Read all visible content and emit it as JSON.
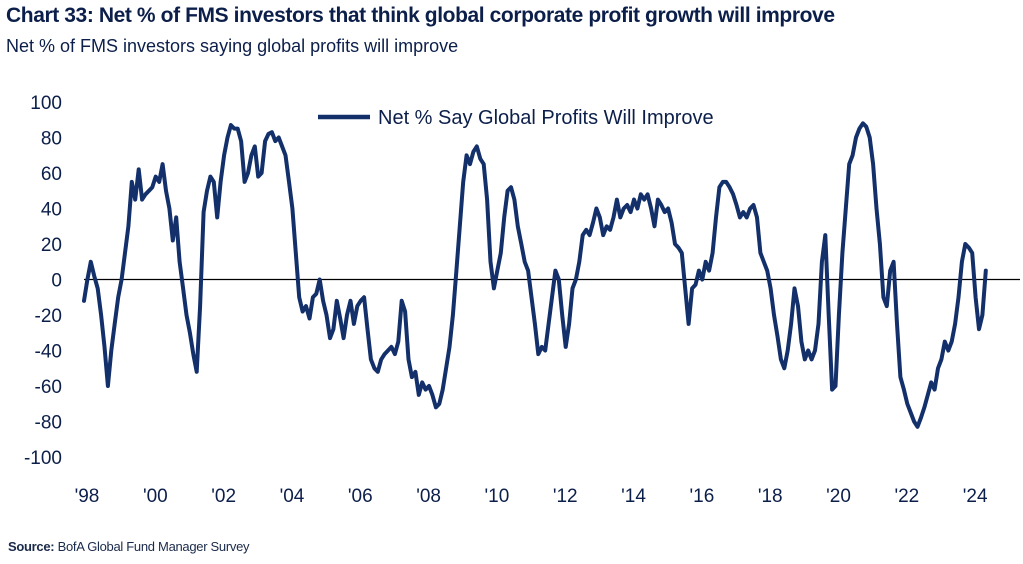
{
  "title": "Chart 33: Net % of FMS investors that think global corporate profit growth will improve",
  "subtitle": "Net % of FMS investors saying global profits will improve",
  "source_label": "Source:",
  "source_text": "BofA Global Fund Manager Survey",
  "colors": {
    "line": "#13306b",
    "text": "#0c1f4a",
    "zero_line": "#000000"
  },
  "chart_data": {
    "type": "line",
    "title": "",
    "xlabel": "",
    "ylabel": "",
    "ylim": [
      -100,
      100
    ],
    "xlim": [
      1998.0,
      2025.4
    ],
    "yticks": [
      100,
      80,
      60,
      40,
      20,
      0,
      -20,
      -40,
      -60,
      -80,
      -100
    ],
    "xticks": [
      {
        "value": 1998,
        "label": "'98"
      },
      {
        "value": 2000,
        "label": "'00"
      },
      {
        "value": 2002,
        "label": "'02"
      },
      {
        "value": 2004,
        "label": "'04"
      },
      {
        "value": 2006,
        "label": "'06"
      },
      {
        "value": 2008,
        "label": "'08"
      },
      {
        "value": 2010,
        "label": "'10"
      },
      {
        "value": 2012,
        "label": "'12"
      },
      {
        "value": 2014,
        "label": "'14"
      },
      {
        "value": 2016,
        "label": "'16"
      },
      {
        "value": 2018,
        "label": "'18"
      },
      {
        "value": 2020,
        "label": "'20"
      },
      {
        "value": 2022,
        "label": "'22"
      },
      {
        "value": 2024,
        "label": "'24"
      }
    ],
    "grid": false,
    "legend_position": "top-center",
    "series": [
      {
        "name": "Net % Say Global Profits Will Improve",
        "points": [
          [
            1998.0,
            -12
          ],
          [
            1998.1,
            0
          ],
          [
            1998.2,
            10
          ],
          [
            1998.3,
            2
          ],
          [
            1998.4,
            -5
          ],
          [
            1998.5,
            -20
          ],
          [
            1998.6,
            -38
          ],
          [
            1998.7,
            -60
          ],
          [
            1998.8,
            -40
          ],
          [
            1998.9,
            -25
          ],
          [
            1999.0,
            -10
          ],
          [
            1999.1,
            0
          ],
          [
            1999.2,
            15
          ],
          [
            1999.3,
            30
          ],
          [
            1999.4,
            55
          ],
          [
            1999.5,
            45
          ],
          [
            1999.6,
            62
          ],
          [
            1999.7,
            45
          ],
          [
            1999.8,
            48
          ],
          [
            1999.9,
            50
          ],
          [
            2000.0,
            52
          ],
          [
            2000.1,
            58
          ],
          [
            2000.2,
            55
          ],
          [
            2000.3,
            65
          ],
          [
            2000.4,
            50
          ],
          [
            2000.5,
            40
          ],
          [
            2000.6,
            22
          ],
          [
            2000.7,
            35
          ],
          [
            2000.8,
            10
          ],
          [
            2000.9,
            -5
          ],
          [
            2001.0,
            -20
          ],
          [
            2001.1,
            -30
          ],
          [
            2001.2,
            -42
          ],
          [
            2001.3,
            -52
          ],
          [
            2001.4,
            -15
          ],
          [
            2001.5,
            38
          ],
          [
            2001.6,
            50
          ],
          [
            2001.7,
            58
          ],
          [
            2001.8,
            55
          ],
          [
            2001.9,
            35
          ],
          [
            2002.0,
            55
          ],
          [
            2002.1,
            70
          ],
          [
            2002.2,
            80
          ],
          [
            2002.3,
            87
          ],
          [
            2002.4,
            85
          ],
          [
            2002.5,
            85
          ],
          [
            2002.6,
            78
          ],
          [
            2002.7,
            55
          ],
          [
            2002.8,
            60
          ],
          [
            2002.9,
            70
          ],
          [
            2003.0,
            75
          ],
          [
            2003.1,
            58
          ],
          [
            2003.2,
            60
          ],
          [
            2003.3,
            78
          ],
          [
            2003.4,
            82
          ],
          [
            2003.5,
            83
          ],
          [
            2003.6,
            78
          ],
          [
            2003.7,
            80
          ],
          [
            2003.8,
            75
          ],
          [
            2003.9,
            70
          ],
          [
            2004.0,
            55
          ],
          [
            2004.1,
            40
          ],
          [
            2004.2,
            15
          ],
          [
            2004.3,
            -10
          ],
          [
            2004.4,
            -18
          ],
          [
            2004.5,
            -15
          ],
          [
            2004.6,
            -22
          ],
          [
            2004.7,
            -10
          ],
          [
            2004.8,
            -8
          ],
          [
            2004.9,
            0
          ],
          [
            2005.0,
            -12
          ],
          [
            2005.1,
            -20
          ],
          [
            2005.2,
            -33
          ],
          [
            2005.3,
            -28
          ],
          [
            2005.4,
            -12
          ],
          [
            2005.5,
            -22
          ],
          [
            2005.6,
            -33
          ],
          [
            2005.7,
            -20
          ],
          [
            2005.8,
            -12
          ],
          [
            2005.9,
            -25
          ],
          [
            2006.0,
            -15
          ],
          [
            2006.1,
            -12
          ],
          [
            2006.2,
            -10
          ],
          [
            2006.3,
            -28
          ],
          [
            2006.4,
            -45
          ],
          [
            2006.5,
            -50
          ],
          [
            2006.6,
            -52
          ],
          [
            2006.7,
            -45
          ],
          [
            2006.8,
            -42
          ],
          [
            2006.9,
            -40
          ],
          [
            2007.0,
            -38
          ],
          [
            2007.1,
            -42
          ],
          [
            2007.2,
            -35
          ],
          [
            2007.3,
            -12
          ],
          [
            2007.4,
            -18
          ],
          [
            2007.5,
            -45
          ],
          [
            2007.6,
            -55
          ],
          [
            2007.7,
            -52
          ],
          [
            2007.8,
            -65
          ],
          [
            2007.9,
            -58
          ],
          [
            2008.0,
            -62
          ],
          [
            2008.1,
            -60
          ],
          [
            2008.2,
            -65
          ],
          [
            2008.3,
            -72
          ],
          [
            2008.4,
            -70
          ],
          [
            2008.5,
            -62
          ],
          [
            2008.6,
            -50
          ],
          [
            2008.7,
            -38
          ],
          [
            2008.8,
            -20
          ],
          [
            2008.9,
            5
          ],
          [
            2009.0,
            30
          ],
          [
            2009.1,
            55
          ],
          [
            2009.2,
            70
          ],
          [
            2009.3,
            65
          ],
          [
            2009.4,
            72
          ],
          [
            2009.5,
            75
          ],
          [
            2009.6,
            68
          ],
          [
            2009.7,
            65
          ],
          [
            2009.8,
            45
          ],
          [
            2009.9,
            10
          ],
          [
            2010.0,
            -5
          ],
          [
            2010.1,
            5
          ],
          [
            2010.2,
            15
          ],
          [
            2010.3,
            35
          ],
          [
            2010.4,
            50
          ],
          [
            2010.5,
            52
          ],
          [
            2010.6,
            45
          ],
          [
            2010.7,
            30
          ],
          [
            2010.8,
            20
          ],
          [
            2010.9,
            10
          ],
          [
            2011.0,
            5
          ],
          [
            2011.1,
            -10
          ],
          [
            2011.2,
            -25
          ],
          [
            2011.3,
            -42
          ],
          [
            2011.4,
            -38
          ],
          [
            2011.5,
            -40
          ],
          [
            2011.6,
            -25
          ],
          [
            2011.7,
            -10
          ],
          [
            2011.8,
            5
          ],
          [
            2011.9,
            0
          ],
          [
            2012.0,
            -20
          ],
          [
            2012.1,
            -38
          ],
          [
            2012.2,
            -25
          ],
          [
            2012.3,
            -5
          ],
          [
            2012.4,
            0
          ],
          [
            2012.5,
            10
          ],
          [
            2012.6,
            25
          ],
          [
            2012.7,
            28
          ],
          [
            2012.8,
            25
          ],
          [
            2012.9,
            32
          ],
          [
            2013.0,
            40
          ],
          [
            2013.1,
            35
          ],
          [
            2013.2,
            25
          ],
          [
            2013.3,
            30
          ],
          [
            2013.4,
            28
          ],
          [
            2013.5,
            35
          ],
          [
            2013.6,
            45
          ],
          [
            2013.7,
            35
          ],
          [
            2013.8,
            40
          ],
          [
            2013.9,
            42
          ],
          [
            2014.0,
            38
          ],
          [
            2014.1,
            45
          ],
          [
            2014.2,
            40
          ],
          [
            2014.3,
            48
          ],
          [
            2014.4,
            45
          ],
          [
            2014.5,
            48
          ],
          [
            2014.6,
            40
          ],
          [
            2014.7,
            30
          ],
          [
            2014.8,
            45
          ],
          [
            2014.9,
            42
          ],
          [
            2015.0,
            38
          ],
          [
            2015.1,
            40
          ],
          [
            2015.2,
            32
          ],
          [
            2015.3,
            20
          ],
          [
            2015.4,
            18
          ],
          [
            2015.5,
            15
          ],
          [
            2015.6,
            -5
          ],
          [
            2015.7,
            -25
          ],
          [
            2015.8,
            -5
          ],
          [
            2015.9,
            -3
          ],
          [
            2016.0,
            5
          ],
          [
            2016.1,
            0
          ],
          [
            2016.2,
            10
          ],
          [
            2016.3,
            5
          ],
          [
            2016.4,
            15
          ],
          [
            2016.5,
            35
          ],
          [
            2016.6,
            52
          ],
          [
            2016.7,
            55
          ],
          [
            2016.8,
            55
          ],
          [
            2016.9,
            52
          ],
          [
            2017.0,
            48
          ],
          [
            2017.1,
            42
          ],
          [
            2017.2,
            35
          ],
          [
            2017.3,
            38
          ],
          [
            2017.4,
            35
          ],
          [
            2017.5,
            40
          ],
          [
            2017.6,
            42
          ],
          [
            2017.7,
            35
          ],
          [
            2017.8,
            15
          ],
          [
            2017.9,
            10
          ],
          [
            2018.0,
            5
          ],
          [
            2018.1,
            -5
          ],
          [
            2018.2,
            -20
          ],
          [
            2018.3,
            -32
          ],
          [
            2018.4,
            -45
          ],
          [
            2018.5,
            -50
          ],
          [
            2018.6,
            -40
          ],
          [
            2018.7,
            -25
          ],
          [
            2018.8,
            -5
          ],
          [
            2018.9,
            -15
          ],
          [
            2019.0,
            -35
          ],
          [
            2019.1,
            -45
          ],
          [
            2019.2,
            -40
          ],
          [
            2019.3,
            -45
          ],
          [
            2019.4,
            -40
          ],
          [
            2019.5,
            -25
          ],
          [
            2019.6,
            10
          ],
          [
            2019.7,
            25
          ],
          [
            2019.8,
            -20
          ],
          [
            2019.9,
            -62
          ],
          [
            2020.0,
            -60
          ],
          [
            2020.1,
            -20
          ],
          [
            2020.2,
            15
          ],
          [
            2020.3,
            40
          ],
          [
            2020.4,
            65
          ],
          [
            2020.5,
            70
          ],
          [
            2020.6,
            80
          ],
          [
            2020.7,
            85
          ],
          [
            2020.8,
            88
          ],
          [
            2020.9,
            86
          ],
          [
            2021.0,
            80
          ],
          [
            2021.1,
            65
          ],
          [
            2021.2,
            40
          ],
          [
            2021.3,
            20
          ],
          [
            2021.4,
            -10
          ],
          [
            2021.5,
            -15
          ],
          [
            2021.6,
            5
          ],
          [
            2021.7,
            10
          ],
          [
            2021.8,
            -25
          ],
          [
            2021.9,
            -55
          ],
          [
            2022.0,
            -62
          ],
          [
            2022.1,
            -70
          ],
          [
            2022.2,
            -75
          ],
          [
            2022.3,
            -80
          ],
          [
            2022.4,
            -83
          ],
          [
            2022.5,
            -78
          ],
          [
            2022.6,
            -72
          ],
          [
            2022.7,
            -65
          ],
          [
            2022.8,
            -58
          ],
          [
            2022.9,
            -62
          ],
          [
            2023.0,
            -50
          ],
          [
            2023.1,
            -45
          ],
          [
            2023.2,
            -35
          ],
          [
            2023.3,
            -40
          ],
          [
            2023.4,
            -35
          ],
          [
            2023.5,
            -25
          ],
          [
            2023.6,
            -10
          ],
          [
            2023.7,
            10
          ],
          [
            2023.8,
            20
          ],
          [
            2023.9,
            18
          ],
          [
            2024.0,
            15
          ],
          [
            2024.1,
            -10
          ],
          [
            2024.2,
            -28
          ],
          [
            2024.3,
            -20
          ],
          [
            2024.4,
            5
          ]
        ]
      }
    ]
  }
}
